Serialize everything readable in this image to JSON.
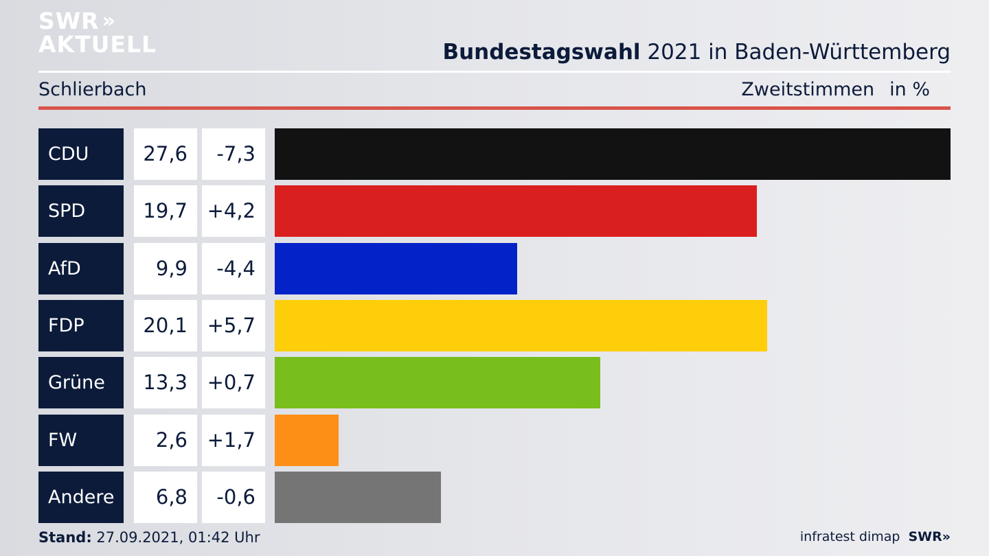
{
  "logo": {
    "line1": "SWR",
    "chevrons": "»",
    "line2": "AKTUELL"
  },
  "header": {
    "title_bold": "Bundestagswahl",
    "title_rest": " 2021 in Baden-Württemberg",
    "region": "Schlierbach",
    "measure": "Zweitstimmen",
    "unit": "in %"
  },
  "chart_data": {
    "type": "bar",
    "orientation": "horizontal",
    "categories": [
      "CDU",
      "SPD",
      "AfD",
      "FDP",
      "Grüne",
      "FW",
      "Andere"
    ],
    "values": [
      27.6,
      19.7,
      9.9,
      20.1,
      13.3,
      2.6,
      6.8
    ],
    "value_labels": [
      "27,6",
      "19,7",
      "9,9",
      "20,1",
      "13,3",
      "2,6",
      "6,8"
    ],
    "changes": [
      "-7,3",
      "+4,2",
      "-4,4",
      "+5,7",
      "+0,7",
      "+1,7",
      "-0,6"
    ],
    "colors": [
      "#121212",
      "#da1f1f",
      "#0322c7",
      "#fece0a",
      "#78be1c",
      "#fd8f17",
      "#757575"
    ],
    "xlim": [
      0,
      27.6
    ]
  },
  "footer": {
    "stand_label": "Stand:",
    "stand_value": " 27.09.2021, 01:42 Uhr",
    "source": "infratest dimap",
    "brand": "SWR»"
  }
}
